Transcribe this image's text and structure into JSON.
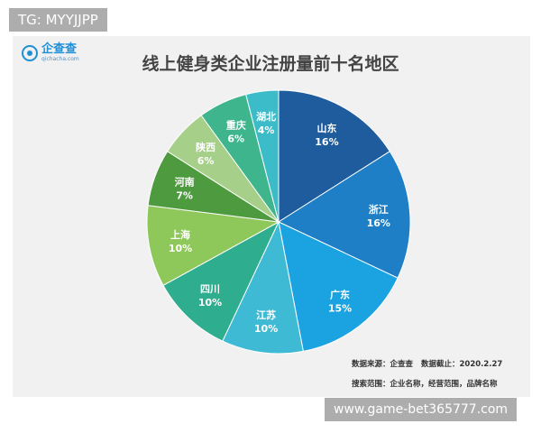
{
  "watermark_top": "TG: MYYJJPP",
  "watermark_bottom": "www.game-bet365777.com",
  "logo": {
    "name": "企查查",
    "url": "qichacha.com",
    "icon": "qichacha-logo-icon"
  },
  "footer": {
    "source_label": "数据来源：企查查",
    "date_label": "数据截止：2020.2.27",
    "search_label": "搜索范围：企业名称，经营范围，品牌名称"
  },
  "chart_data": {
    "type": "pie",
    "title": "线上健身类企业注册量前十名地区",
    "slices": [
      {
        "name": "山东",
        "label": "16%",
        "value": 16,
        "color": "#1f5c9e"
      },
      {
        "name": "浙江",
        "label": "16%",
        "value": 16,
        "color": "#1e7fc6"
      },
      {
        "name": "广东",
        "label": "15%",
        "value": 15,
        "color": "#1aa3e0"
      },
      {
        "name": "江苏",
        "label": "10%",
        "value": 10,
        "color": "#3fbad4"
      },
      {
        "name": "四川",
        "label": "10%",
        "value": 10,
        "color": "#2fad8f"
      },
      {
        "name": "上海",
        "label": "10%",
        "value": 10,
        "color": "#8ec85a"
      },
      {
        "name": "河南",
        "label": "7%",
        "value": 7,
        "color": "#4e9a3e"
      },
      {
        "name": "陕西",
        "label": "6%",
        "value": 6,
        "color": "#a6cf8a"
      },
      {
        "name": "重庆",
        "label": "6%",
        "value": 6,
        "color": "#3fb58e"
      },
      {
        "name": "湖北",
        "label": "4%",
        "value": 4,
        "color": "#3bbcc8"
      }
    ]
  }
}
